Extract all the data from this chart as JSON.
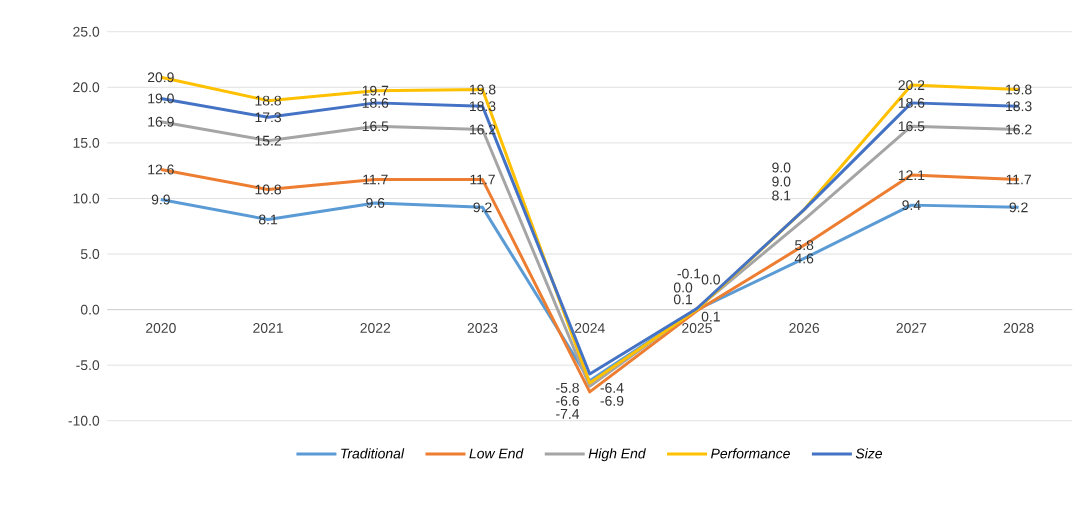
{
  "chart_data": {
    "type": "line",
    "categories": [
      "2020",
      "2021",
      "2022",
      "2023",
      "2024",
      "2025",
      "2026",
      "2027",
      "2028"
    ],
    "series": [
      {
        "name": "Traditional",
        "color": "#5b9bd5",
        "values": [
          9.9,
          8.1,
          9.6,
          9.2,
          -6.4,
          0.0,
          4.6,
          9.4,
          9.2
        ],
        "value_labels": [
          "9.9",
          "8.1",
          "9.6",
          "9.2",
          "-6.4",
          "0.0",
          "4.6",
          "9.4",
          "9.2"
        ]
      },
      {
        "name": "Low End",
        "color": "#ed7d31",
        "values": [
          12.6,
          10.8,
          11.7,
          11.7,
          -7.4,
          -0.1,
          5.8,
          12.1,
          11.7
        ],
        "value_labels": [
          "12.6",
          "10.8",
          "11.7",
          "11.7",
          "-7.4",
          "-0.1",
          "5.8",
          "12.1",
          "11.7"
        ]
      },
      {
        "name": "High End",
        "color": "#a5a5a5",
        "values": [
          16.9,
          15.2,
          16.5,
          16.2,
          -6.9,
          0.1,
          8.1,
          16.5,
          16.2
        ],
        "value_labels": [
          "16.9",
          "15.2",
          "16.5",
          "16.2",
          "-6.9",
          "0.1",
          "8.1",
          "16.5",
          "16.2"
        ]
      },
      {
        "name": "Performance",
        "color": "#ffc000",
        "values": [
          20.9,
          18.8,
          19.7,
          19.8,
          -6.6,
          0.0,
          9.0,
          20.2,
          19.8
        ],
        "value_labels": [
          "20.9",
          "18.8",
          "19.7",
          "19.8",
          "-6.6",
          "0.0",
          "9.0",
          "20.2",
          "19.8"
        ]
      },
      {
        "name": "Size",
        "color": "#4472c4",
        "values": [
          19.0,
          17.3,
          18.6,
          18.3,
          -5.8,
          0.1,
          9.0,
          18.6,
          18.3
        ],
        "value_labels": [
          "19.0",
          "17.3",
          "18.6",
          "18.3",
          "-5.8",
          "0.1",
          "9.0",
          "18.6",
          "18.3"
        ]
      }
    ],
    "ylim": [
      -10,
      25
    ],
    "yticks": [
      {
        "value": -10,
        "label": "-10.0"
      },
      {
        "value": -5,
        "label": "-5.0"
      },
      {
        "value": 0,
        "label": "0.0"
      },
      {
        "value": 5,
        "label": "5.0"
      },
      {
        "value": 10,
        "label": "10.0"
      },
      {
        "value": 15,
        "label": "15.0"
      },
      {
        "value": 20,
        "label": "20.0"
      },
      {
        "value": 25,
        "label": "25.0"
      }
    ],
    "grid": "y",
    "legend": "bottom",
    "marker": "none",
    "line_style": "solid"
  }
}
